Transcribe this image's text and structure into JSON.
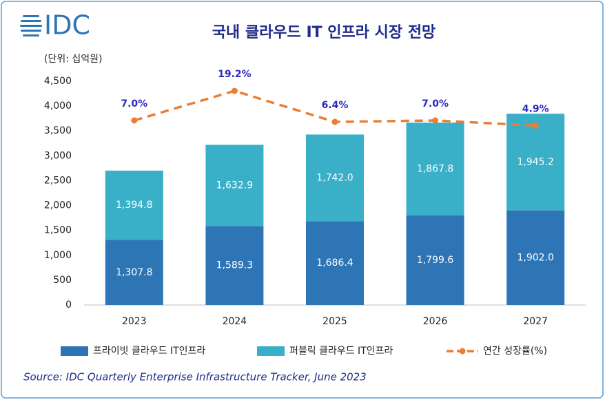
{
  "chart_data": {
    "type": "bar",
    "stacked": true,
    "logo": "IDC",
    "title": "국내 클라우드 IT 인프라 시장 전망",
    "y_label": "(단위: 십억원)",
    "source": "Source: IDC Quarterly Enterprise Infrastructure Tracker, June 2023",
    "categories": [
      "2023",
      "2024",
      "2025",
      "2026",
      "2027"
    ],
    "series": [
      {
        "name": "프라이빗 클라우드 IT인프라",
        "color": "#2e75b6",
        "values": [
          1307.8,
          1589.3,
          1686.4,
          1799.6,
          1902.0
        ],
        "value_labels": [
          "1,307.8",
          "1,589.3",
          "1,686.4",
          "1,799.6",
          "1,902.0"
        ]
      },
      {
        "name": "퍼블릭 클라우드 IT인프라",
        "color": "#3aafc8",
        "values": [
          1394.8,
          1632.9,
          1742.0,
          1867.8,
          1945.2
        ],
        "value_labels": [
          "1,394.8",
          "1,632.9",
          "1,742.0",
          "1,867.8",
          "1,945.2"
        ]
      },
      {
        "name": "연간 성장률(%)",
        "type": "line",
        "axis": "y2",
        "color": "#ed7d31",
        "values": [
          7.0,
          19.2,
          6.4,
          7.0,
          4.9
        ],
        "value_labels": [
          "7.0%",
          "19.2%",
          "6.4%",
          "7.0%",
          "4.9%"
        ]
      }
    ],
    "ylim": [
      0,
      4500
    ],
    "yticks": [
      0,
      500,
      {
        "value": 1000,
        "label": "1,000"
      },
      {
        "value": 1500,
        "label": "1,500"
      },
      {
        "value": 2000,
        "label": "2,000"
      },
      {
        "value": 2500,
        "label": "2,500"
      },
      {
        "value": 3000,
        "label": "3,000"
      },
      {
        "value": 3500,
        "label": "3,500"
      },
      {
        "value": 4000,
        "label": "4,000"
      },
      {
        "value": 4500,
        "label": "4,500"
      }
    ]
  }
}
